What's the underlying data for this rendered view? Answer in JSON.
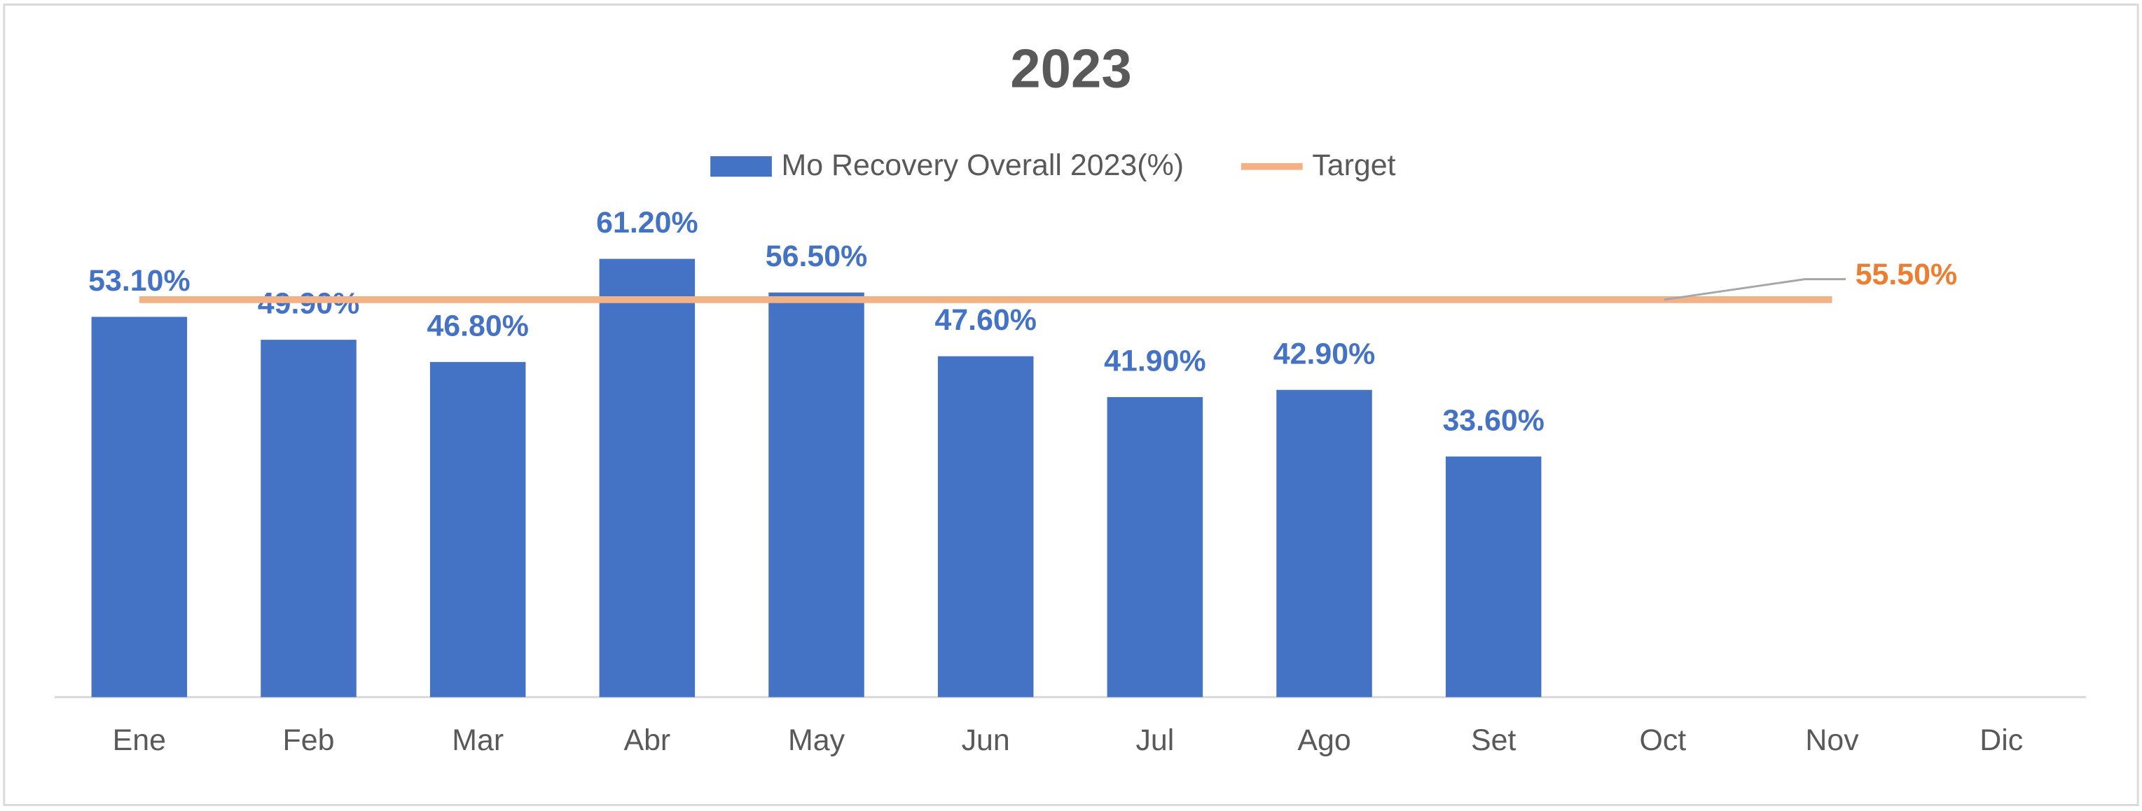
{
  "chart_data": {
    "type": "bar",
    "title": "2023",
    "categories": [
      "Ene",
      "Feb",
      "Mar",
      "Abr",
      "May",
      "Jun",
      "Jul",
      "Ago",
      "Set",
      "Oct",
      "Nov",
      "Dic"
    ],
    "series": [
      {
        "name": "Mo Recovery Overall 2023(%)",
        "type": "bar",
        "color": "#4472c4",
        "values": [
          53.1,
          49.9,
          46.8,
          61.2,
          56.5,
          47.6,
          41.9,
          42.9,
          33.6,
          null,
          null,
          null
        ],
        "value_labels": [
          "53.10%",
          "49.90%",
          "46.80%",
          "61.20%",
          "56.50%",
          "47.60%",
          "41.90%",
          "42.90%",
          "33.60%",
          null,
          null,
          null
        ]
      },
      {
        "name": "Target",
        "type": "line",
        "color": "#f4b183",
        "label_color": "#ed7d31",
        "values": [
          55.5,
          55.5,
          55.5,
          55.5,
          55.5,
          55.5,
          55.5,
          55.5,
          55.5,
          55.5,
          55.5,
          null
        ],
        "value_labels": [
          null,
          null,
          null,
          null,
          null,
          null,
          null,
          null,
          null,
          null,
          "55.50%",
          null
        ]
      }
    ],
    "ylim": [
      0,
      70
    ],
    "legend": "top",
    "grid": false
  }
}
